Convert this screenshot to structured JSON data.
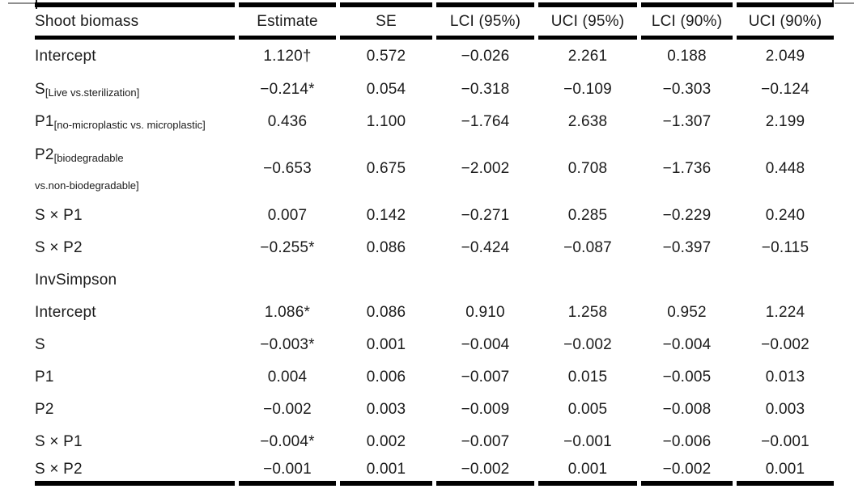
{
  "colors": {
    "text": "#1b1b1b",
    "rule": "#000000",
    "corner_tick_gray": "#8f8f8f"
  },
  "table": {
    "columns": [
      "Shoot biomass",
      "Estimate",
      "SE",
      "LCI (95%)",
      "UCI (95%)",
      "LCI (90%)",
      "UCI (90%)"
    ],
    "sections": [
      {
        "name": "",
        "rows": [
          {
            "label": "Intercept",
            "sub": "",
            "sub2": "",
            "values": [
              "1.120†",
              "0.572",
              "−0.026",
              "2.261",
              "0.188",
              "2.049"
            ]
          },
          {
            "label": "S",
            "sub": "[Live vs.sterilization]",
            "sub2": "",
            "values": [
              "−0.214*",
              "0.054",
              "−0.318",
              "−0.109",
              "−0.303",
              "−0.124"
            ]
          },
          {
            "label": "P1",
            "sub": "[no-microplastic vs. microplastic]",
            "sub2": "",
            "values": [
              "0.436",
              "1.100",
              "−1.764",
              "2.638",
              "−1.307",
              "2.199"
            ]
          },
          {
            "label": "P2",
            "sub": "[biodegradable",
            "sub2": "vs.non-biodegradable]",
            "values": [
              "−0.653",
              "0.675",
              "−2.002",
              "0.708",
              "−1.736",
              "0.448"
            ]
          },
          {
            "label": "S × P1",
            "sub": "",
            "sub2": "",
            "values": [
              "0.007",
              "0.142",
              "−0.271",
              "0.285",
              "−0.229",
              "0.240"
            ]
          },
          {
            "label": "S × P2",
            "sub": "",
            "sub2": "",
            "values": [
              "−0.255*",
              "0.086",
              "−0.424",
              "−0.087",
              "−0.397",
              "−0.115"
            ]
          }
        ]
      },
      {
        "name": "InvSimpson",
        "rows": [
          {
            "label": "Intercept",
            "sub": "",
            "sub2": "",
            "values": [
              "1.086*",
              "0.086",
              "0.910",
              "1.258",
              "0.952",
              "1.224"
            ]
          },
          {
            "label": "S",
            "sub": "",
            "sub2": "",
            "values": [
              "−0.003*",
              "0.001",
              "−0.004",
              "−0.002",
              "−0.004",
              "−0.002"
            ]
          },
          {
            "label": "P1",
            "sub": "",
            "sub2": "",
            "values": [
              "0.004",
              "0.006",
              "−0.007",
              "0.015",
              "−0.005",
              "0.013"
            ]
          },
          {
            "label": "P2",
            "sub": "",
            "sub2": "",
            "values": [
              "−0.002",
              "0.003",
              "−0.009",
              "0.005",
              "−0.008",
              "0.003"
            ]
          },
          {
            "label": "S × P1",
            "sub": "",
            "sub2": "",
            "values": [
              "−0.004*",
              "0.002",
              "−0.007",
              "−0.001",
              "−0.006",
              "−0.001"
            ]
          },
          {
            "label": "S × P2",
            "sub": "",
            "sub2": "",
            "values": [
              "−0.001",
              "0.001",
              "−0.002",
              "0.001",
              "−0.002",
              "0.001"
            ]
          }
        ]
      }
    ]
  }
}
